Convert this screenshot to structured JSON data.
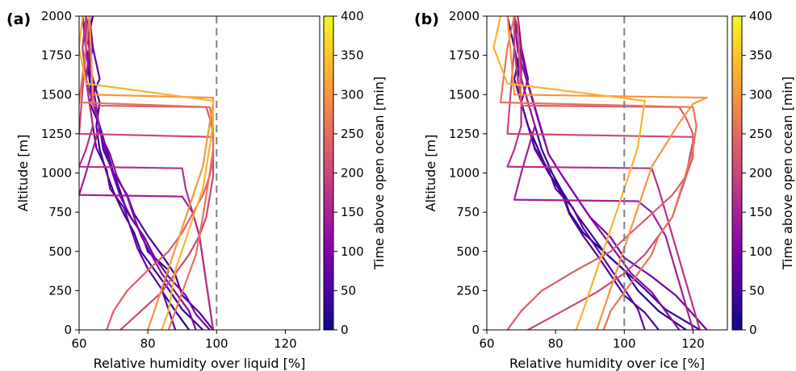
{
  "chart_data": [
    {
      "type": "line",
      "panel_label": "(a)",
      "xlabel": "Relative humidity over liquid [%]",
      "ylabel": "Altitude [m]",
      "xlim": [
        60,
        130
      ],
      "ylim": [
        0,
        2000
      ],
      "xticks": [
        60,
        80,
        100,
        120
      ],
      "yticks": [
        0,
        250,
        500,
        750,
        1000,
        1250,
        1500,
        1750,
        2000
      ],
      "reference_line": {
        "x": 100,
        "style": "dashed",
        "color": "#808080"
      },
      "colorbar": {
        "label": "Time above open ocean [min]",
        "min": 0,
        "max": 400,
        "ticks": [
          0,
          50,
          100,
          150,
          200,
          250,
          300,
          350,
          400
        ],
        "colormap": "plasma"
      },
      "grid": false,
      "series": [
        {
          "t": 20,
          "x": [
            92,
            88,
            84,
            86,
            80,
            78,
            74,
            72,
            70,
            68,
            66,
            64,
            63,
            62,
            64
          ],
          "y": [
            0,
            120,
            250,
            380,
            500,
            620,
            750,
            880,
            1000,
            1150,
            1300,
            1450,
            1600,
            1800,
            2000
          ]
        },
        {
          "t": 35,
          "x": [
            96,
            90,
            86,
            82,
            78,
            76,
            73,
            70,
            68,
            66,
            65,
            66,
            64,
            62,
            61
          ],
          "y": [
            0,
            130,
            260,
            380,
            500,
            620,
            740,
            880,
            1000,
            1150,
            1300,
            1450,
            1600,
            1800,
            2000
          ]
        },
        {
          "t": 50,
          "x": [
            99,
            95,
            90,
            88,
            84,
            80,
            76,
            74,
            70,
            67,
            66,
            63,
            62,
            64,
            62
          ],
          "y": [
            0,
            110,
            220,
            350,
            480,
            600,
            740,
            860,
            1000,
            1150,
            1300,
            1450,
            1600,
            1800,
            2000
          ]
        },
        {
          "t": 70,
          "x": [
            88,
            86,
            84,
            80,
            77,
            75,
            73,
            69,
            68,
            65,
            64,
            63,
            66,
            64,
            63
          ],
          "y": [
            0,
            130,
            260,
            390,
            520,
            650,
            780,
            900,
            1020,
            1160,
            1300,
            1450,
            1600,
            1800,
            2000
          ]
        },
        {
          "t": 90,
          "x": [
            98,
            94,
            91,
            86,
            82,
            79,
            75,
            72,
            70,
            68,
            66,
            65,
            64,
            63,
            62
          ],
          "y": [
            0,
            100,
            220,
            340,
            460,
            590,
            720,
            850,
            980,
            1120,
            1270,
            1420,
            1570,
            1780,
            2000
          ]
        },
        {
          "t": 110,
          "x": [
            94,
            92,
            88,
            84,
            81,
            78,
            76,
            74,
            71,
            69,
            66,
            65,
            64,
            62,
            61
          ],
          "y": [
            0,
            120,
            240,
            360,
            480,
            600,
            720,
            850,
            980,
            1120,
            1260,
            1410,
            1560,
            1780,
            2000
          ]
        },
        {
          "t": 140,
          "x": [
            99,
            98,
            97,
            96,
            95,
            93,
            90,
            60,
            62,
            64,
            66,
            64,
            62,
            63,
            62
          ],
          "y": [
            0,
            150,
            300,
            450,
            600,
            750,
            850,
            860,
            1000,
            1150,
            1300,
            1450,
            1600,
            1800,
            2000
          ]
        },
        {
          "t": 170,
          "x": [
            99,
            98,
            97,
            96,
            95,
            93,
            91,
            90,
            60,
            62,
            64,
            63,
            62,
            61,
            62
          ],
          "y": [
            0,
            150,
            300,
            450,
            600,
            750,
            900,
            1030,
            1040,
            1150,
            1300,
            1450,
            1600,
            1800,
            2000
          ]
        },
        {
          "t": 200,
          "x": [
            72,
            78,
            84,
            88,
            92,
            95,
            97,
            98,
            99,
            99,
            99,
            99,
            60,
            62,
            62
          ],
          "y": [
            0,
            120,
            240,
            360,
            480,
            600,
            720,
            850,
            980,
            1100,
            1200,
            1230,
            1250,
            1800,
            2000
          ]
        },
        {
          "t": 230,
          "x": [
            68,
            70,
            74,
            80,
            86,
            90,
            93,
            96,
            98,
            99,
            99,
            98,
            97,
            64,
            63
          ],
          "y": [
            0,
            120,
            250,
            380,
            500,
            620,
            740,
            860,
            980,
            1100,
            1250,
            1350,
            1420,
            1430,
            2000
          ]
        },
        {
          "t": 260,
          "x": [
            86,
            88,
            90,
            92,
            94,
            95,
            96,
            97,
            98,
            99,
            99,
            98,
            60,
            62,
            63
          ],
          "y": [
            0,
            120,
            240,
            360,
            480,
            600,
            720,
            860,
            1000,
            1150,
            1300,
            1420,
            1450,
            1800,
            2000
          ]
        },
        {
          "t": 300,
          "x": [
            80,
            82,
            84,
            86,
            88,
            90,
            92,
            94,
            96,
            97,
            98,
            99,
            99,
            64,
            63
          ],
          "y": [
            0,
            130,
            260,
            390,
            520,
            650,
            780,
            910,
            1040,
            1180,
            1320,
            1440,
            1480,
            1500,
            2000
          ]
        },
        {
          "t": 330,
          "x": [
            84,
            86,
            87,
            88,
            90,
            92,
            94,
            96,
            97,
            98,
            99,
            99,
            62,
            60,
            61
          ],
          "y": [
            0,
            120,
            250,
            380,
            510,
            640,
            770,
            900,
            1030,
            1170,
            1320,
            1460,
            1570,
            1800,
            2000
          ]
        }
      ]
    },
    {
      "type": "line",
      "panel_label": "(b)",
      "xlabel": "Relative humidity over ice [%]",
      "ylabel": "Altitude [m]",
      "xlim": [
        60,
        130
      ],
      "ylim": [
        0,
        2000
      ],
      "xticks": [
        60,
        80,
        100,
        120
      ],
      "yticks": [
        0,
        250,
        500,
        750,
        1000,
        1250,
        1500,
        1750,
        2000
      ],
      "reference_line": {
        "x": 100,
        "style": "dashed",
        "color": "#808080"
      },
      "colorbar": {
        "label": "Time above open ocean [min]",
        "min": 0,
        "max": 400,
        "ticks": [
          0,
          50,
          100,
          150,
          200,
          250,
          300,
          350,
          400
        ],
        "colormap": "plasma"
      },
      "grid": false,
      "series": [
        {
          "t": 20,
          "x": [
            118,
            110,
            104,
            100,
            94,
            88,
            84,
            82,
            78,
            75,
            72,
            70,
            69,
            70,
            68
          ],
          "y": [
            0,
            120,
            250,
            380,
            500,
            620,
            750,
            880,
            1000,
            1150,
            1300,
            1450,
            1600,
            1800,
            2000
          ]
        },
        {
          "t": 35,
          "x": [
            122,
            112,
            106,
            100,
            94,
            90,
            86,
            82,
            79,
            76,
            74,
            72,
            70,
            68,
            66
          ],
          "y": [
            0,
            130,
            260,
            380,
            500,
            620,
            740,
            880,
            1000,
            1150,
            1300,
            1450,
            1600,
            1800,
            2000
          ]
        },
        {
          "t": 50,
          "x": [
            110,
            106,
            100,
            96,
            92,
            88,
            84,
            82,
            78,
            74,
            72,
            70,
            68,
            70,
            69
          ],
          "y": [
            0,
            110,
            220,
            350,
            480,
            600,
            740,
            860,
            1000,
            1150,
            1300,
            1450,
            1600,
            1800,
            2000
          ]
        },
        {
          "t": 70,
          "x": [
            106,
            104,
            100,
            96,
            92,
            88,
            85,
            80,
            78,
            74,
            72,
            70,
            72,
            70,
            69
          ],
          "y": [
            0,
            130,
            260,
            390,
            520,
            650,
            780,
            900,
            1020,
            1160,
            1300,
            1450,
            1600,
            1800,
            2000
          ]
        },
        {
          "t": 90,
          "x": [
            124,
            120,
            115,
            108,
            100,
            96,
            90,
            86,
            82,
            78,
            76,
            74,
            72,
            70,
            69
          ],
          "y": [
            0,
            100,
            220,
            340,
            460,
            590,
            720,
            850,
            980,
            1120,
            1270,
            1420,
            1570,
            1780,
            2000
          ]
        },
        {
          "t": 110,
          "x": [
            116,
            112,
            108,
            102,
            98,
            94,
            90,
            86,
            82,
            78,
            76,
            74,
            72,
            69,
            68
          ],
          "y": [
            0,
            120,
            240,
            360,
            480,
            600,
            720,
            850,
            980,
            1120,
            1260,
            1410,
            1560,
            1780,
            2000
          ]
        },
        {
          "t": 140,
          "x": [
            120,
            118,
            116,
            114,
            112,
            108,
            104,
            68,
            70,
            72,
            74,
            72,
            70,
            70,
            68
          ],
          "y": [
            0,
            150,
            300,
            450,
            600,
            750,
            820,
            830,
            1000,
            1150,
            1300,
            1450,
            1600,
            1800,
            2000
          ]
        },
        {
          "t": 170,
          "x": [
            122,
            120,
            118,
            116,
            114,
            112,
            110,
            108,
            66,
            68,
            70,
            70,
            69,
            68,
            68
          ],
          "y": [
            0,
            150,
            300,
            450,
            600,
            750,
            900,
            1030,
            1040,
            1150,
            1300,
            1450,
            1600,
            1800,
            2000
          ]
        },
        {
          "t": 200,
          "x": [
            72,
            82,
            92,
            100,
            106,
            110,
            114,
            116,
            118,
            119,
            120,
            120,
            66,
            68,
            68
          ],
          "y": [
            0,
            120,
            240,
            360,
            480,
            600,
            720,
            850,
            980,
            1100,
            1200,
            1230,
            1250,
            1800,
            2000
          ]
        },
        {
          "t": 230,
          "x": [
            66,
            70,
            76,
            86,
            96,
            102,
            108,
            114,
            118,
            120,
            120,
            118,
            116,
            70,
            69
          ],
          "y": [
            0,
            120,
            250,
            380,
            500,
            620,
            740,
            860,
            980,
            1100,
            1250,
            1350,
            1420,
            1430,
            2000
          ]
        },
        {
          "t": 260,
          "x": [
            94,
            96,
            100,
            104,
            108,
            110,
            114,
            116,
            118,
            120,
            121,
            120,
            64,
            66,
            68
          ],
          "y": [
            0,
            120,
            240,
            360,
            480,
            600,
            720,
            860,
            1000,
            1150,
            1300,
            1420,
            1450,
            1800,
            2000
          ]
        },
        {
          "t": 300,
          "x": [
            92,
            94,
            96,
            98,
            100,
            102,
            104,
            106,
            108,
            112,
            116,
            120,
            124,
            68,
            66
          ],
          "y": [
            0,
            130,
            260,
            390,
            520,
            650,
            780,
            910,
            1040,
            1180,
            1320,
            1440,
            1480,
            1500,
            2000
          ]
        },
        {
          "t": 330,
          "x": [
            86,
            88,
            90,
            92,
            94,
            96,
            98,
            100,
            102,
            104,
            105,
            106,
            66,
            62,
            64
          ],
          "y": [
            0,
            120,
            250,
            380,
            510,
            640,
            770,
            900,
            1030,
            1170,
            1320,
            1460,
            1570,
            1800,
            2000
          ]
        }
      ]
    }
  ]
}
